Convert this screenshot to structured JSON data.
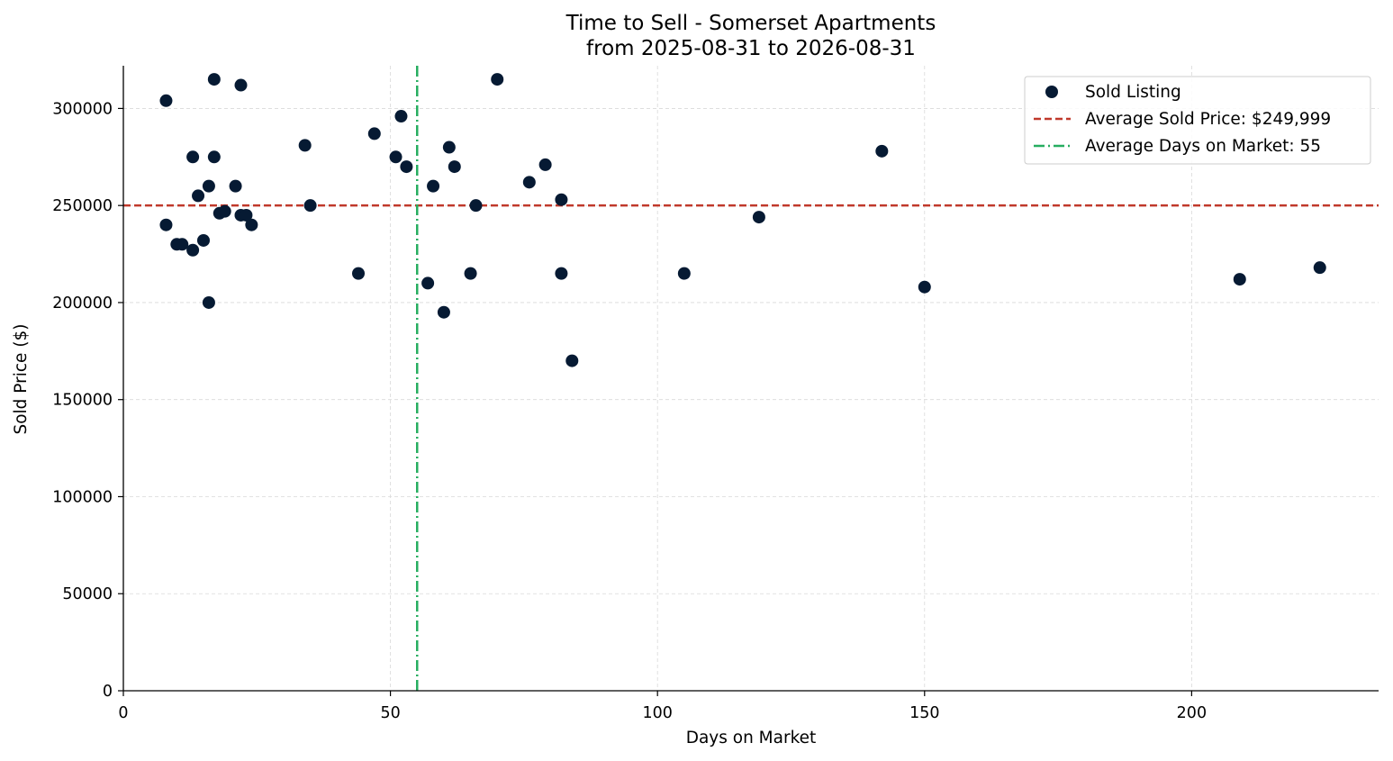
{
  "chart_data": {
    "type": "scatter",
    "title_lines": [
      "Time to Sell - Somerset Apartments",
      "from 2025-08-31 to 2026-08-31"
    ],
    "xlabel": "Days on Market",
    "ylabel": "Sold Price ($)",
    "xlim": [
      0,
      235
    ],
    "ylim": [
      0,
      322000
    ],
    "xticks": [
      0,
      50,
      100,
      150,
      200
    ],
    "yticks": [
      0,
      50000,
      100000,
      150000,
      200000,
      250000,
      300000
    ],
    "grid": true,
    "legend_position": "top-right",
    "series": [
      {
        "name": "Sold Listing",
        "kind": "scatter",
        "color": "#061a33",
        "x": [
          8,
          8,
          10,
          11,
          13,
          13,
          14,
          15,
          16,
          16,
          17,
          17,
          18,
          19,
          21,
          22,
          22,
          23,
          24,
          34,
          35,
          44,
          47,
          51,
          52,
          53,
          57,
          58,
          60,
          61,
          62,
          65,
          66,
          70,
          76,
          79,
          82,
          82,
          84,
          105,
          119,
          142,
          150,
          209,
          224
        ],
        "y": [
          304000,
          240000,
          230000,
          230000,
          227000,
          275000,
          255000,
          232000,
          260000,
          200000,
          315000,
          275000,
          246000,
          247000,
          260000,
          312000,
          245000,
          245000,
          240000,
          281000,
          250000,
          215000,
          287000,
          275000,
          296000,
          270000,
          210000,
          260000,
          195000,
          280000,
          270000,
          215000,
          250000,
          315000,
          262000,
          271000,
          253000,
          215000,
          170000,
          215000,
          244000,
          278000,
          208000,
          212000,
          218000
        ]
      }
    ],
    "reference_lines": [
      {
        "name": "Average Sold Price: $249,999",
        "orientation": "horizontal",
        "value": 249999,
        "color": "#c0392b",
        "style": "dashed"
      },
      {
        "name": "Average Days on Market: 55",
        "orientation": "vertical",
        "value": 55,
        "color": "#27ae60",
        "style": "dashdot"
      }
    ]
  }
}
